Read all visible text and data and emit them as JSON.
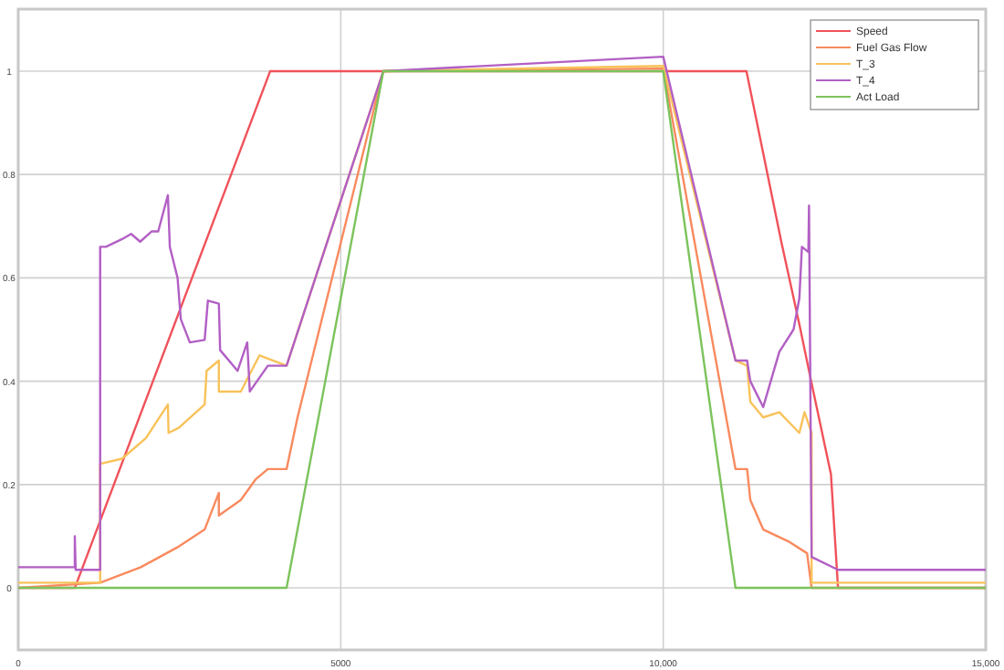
{
  "chart_data": {
    "type": "line",
    "xlim": [
      0,
      15000
    ],
    "ylim": [
      -0.12,
      1.12
    ],
    "xticks": [
      0,
      5000,
      {
        "value": 10000,
        "label": "10,000"
      },
      {
        "value": 15000,
        "label": "15,000"
      }
    ],
    "yticks": [
      0,
      0.2,
      0.4,
      0.6,
      0.8,
      1
    ],
    "grid": true,
    "legend": "top right",
    "marker": "none",
    "line_style": "solid",
    "series": [
      {
        "name": "Speed",
        "color": "#f0525a",
        "x": [
          0,
          877,
          3906,
          11290,
          11830,
          12110,
          12310,
          12600,
          12710,
          15000
        ],
        "values": [
          0,
          0,
          1,
          1,
          0.67,
          0.51,
          0.39,
          0.22,
          0,
          0
        ]
      },
      {
        "name": "Fuel Gas Flow",
        "color": "#f98a5e",
        "x": [
          0,
          1270,
          1900,
          2460,
          2890,
          3110,
          3110,
          3450,
          3680,
          3870,
          4160,
          4330,
          5660,
          10000,
          11120,
          11300,
          11350,
          11550,
          11940,
          12230,
          12300,
          15000
        ],
        "values": [
          0,
          0.01,
          0.04,
          0.078,
          0.113,
          0.184,
          0.14,
          0.17,
          0.21,
          0.23,
          0.23,
          0.33,
          1,
          1.005,
          0.23,
          0.23,
          0.17,
          0.113,
          0.09,
          0.067,
          0,
          0
        ]
      },
      {
        "name": "T_3",
        "color": "#f8c25a",
        "x": [
          0,
          1270,
          1270,
          1610,
          1980,
          2320,
          2330,
          2490,
          2890,
          2920,
          3110,
          3110,
          3450,
          3740,
          4160,
          5660,
          10000,
          11120,
          11300,
          11350,
          11550,
          11800,
          12110,
          12190,
          12300,
          12300,
          15000
        ],
        "values": [
          0.01,
          0.01,
          0.24,
          0.25,
          0.29,
          0.355,
          0.3,
          0.31,
          0.355,
          0.42,
          0.44,
          0.38,
          0.38,
          0.45,
          0.43,
          1,
          1.01,
          0.44,
          0.43,
          0.36,
          0.33,
          0.34,
          0.3,
          0.34,
          0.3,
          0.01,
          0.01
        ]
      },
      {
        "name": "T_4",
        "color": "#b25fc4",
        "x": [
          0,
          877,
          877,
          890,
          1270,
          1270,
          1360,
          1610,
          1750,
          1890,
          2070,
          2170,
          2320,
          2350,
          2470,
          2520,
          2660,
          2890,
          2940,
          3110,
          3130,
          3400,
          3550,
          3590,
          3870,
          4160,
          5660,
          10000,
          11120,
          11300,
          11350,
          11550,
          11800,
          12020,
          12110,
          12150,
          12250,
          12260,
          12300,
          12710,
          15000
        ],
        "values": [
          0.04,
          0.04,
          0.1,
          0.035,
          0.035,
          0.66,
          0.66,
          0.675,
          0.685,
          0.67,
          0.69,
          0.69,
          0.76,
          0.66,
          0.6,
          0.52,
          0.475,
          0.48,
          0.556,
          0.55,
          0.46,
          0.42,
          0.475,
          0.38,
          0.43,
          0.43,
          1,
          1.028,
          0.44,
          0.44,
          0.4,
          0.35,
          0.457,
          0.5,
          0.56,
          0.66,
          0.65,
          0.74,
          0.06,
          0.035,
          0.035
        ]
      },
      {
        "name": "Act Load",
        "color": "#7cc35c",
        "x": [
          0,
          4160,
          5660,
          10000,
          11120,
          15000
        ],
        "values": [
          0,
          0,
          1,
          1,
          0,
          0
        ]
      }
    ]
  }
}
